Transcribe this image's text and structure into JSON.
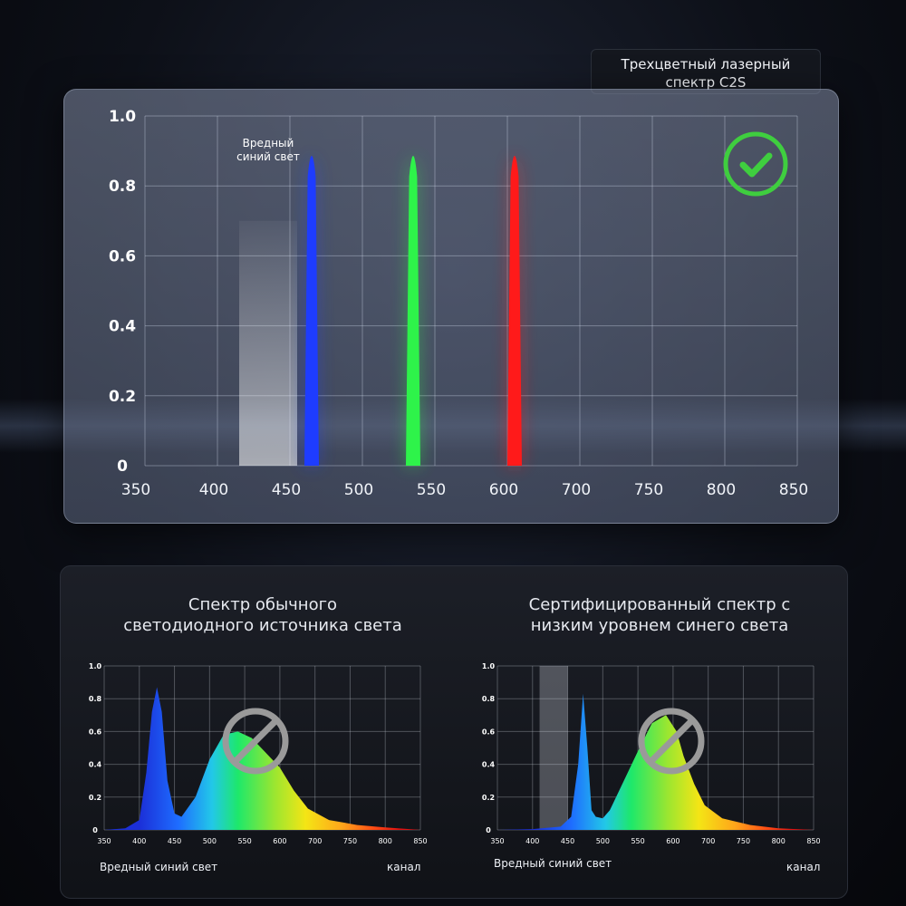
{
  "caption": {
    "line1": "Трехцветный лазерный",
    "line2": "спектр C2S"
  },
  "colors": {
    "blue": "#1e3cff",
    "green": "#2ef34a",
    "red": "#ff1a1a",
    "check": "#3fce3f",
    "prohibit": "#9a9a9a"
  },
  "chart_data": [
    {
      "type": "line",
      "title": "Трехцветный лазерный спектр C2S",
      "x_ticks": [
        350,
        400,
        450,
        500,
        550,
        600,
        700,
        750,
        800,
        850
      ],
      "y_ticks": [
        0,
        0.2,
        0.4,
        0.6,
        0.8,
        1.0
      ],
      "y_tick_labels": [
        "0",
        "0.2",
        "0.4",
        "0.6",
        "0.8",
        "1.0"
      ],
      "highlight_band": {
        "from": 415,
        "to": 455,
        "label_line1": "Вредный",
        "label_line2": "синий свет"
      },
      "series": [
        {
          "peak_x": 465,
          "value": 0.93,
          "color": "blue"
        },
        {
          "peak_x": 535,
          "value": 0.93,
          "color": "green"
        },
        {
          "peak_x": 610,
          "value": 0.93,
          "color": "red"
        }
      ],
      "grid": true,
      "badge": "check-icon"
    },
    {
      "type": "area",
      "title": "Спектр обычного\nсветодиодного источника света",
      "x_ticks": [
        350,
        400,
        450,
        500,
        550,
        600,
        700,
        750,
        800,
        850
      ],
      "y_ticks": [
        0,
        0.2,
        0.4,
        0.6,
        0.8,
        1.0
      ],
      "y_tick_labels": [
        "0",
        "0.2",
        "0.4",
        "0.6",
        "0.8",
        "1.0"
      ],
      "x": [
        350,
        380,
        400,
        410,
        418,
        425,
        432,
        440,
        450,
        460,
        480,
        500,
        520,
        540,
        560,
        580,
        600,
        640,
        680,
        720,
        760,
        800,
        850
      ],
      "y": [
        0.0,
        0.01,
        0.06,
        0.35,
        0.72,
        0.87,
        0.72,
        0.3,
        0.1,
        0.08,
        0.2,
        0.43,
        0.58,
        0.6,
        0.56,
        0.47,
        0.38,
        0.24,
        0.13,
        0.06,
        0.03,
        0.015,
        0.0
      ],
      "footer_left": "Вредный синий свет",
      "footer_right": "канал",
      "badge": "prohibit-icon"
    },
    {
      "type": "area",
      "title": "Сертифицированный спектр с\nнизким уровнем синего света",
      "x_ticks": [
        350,
        400,
        450,
        500,
        550,
        600,
        700,
        750,
        800,
        850
      ],
      "y_ticks": [
        0,
        0.2,
        0.4,
        0.6,
        0.8,
        1.0
      ],
      "y_tick_labels": [
        "0",
        "0.2",
        "0.4",
        "0.6",
        "0.8",
        "1.0"
      ],
      "highlight_band": {
        "from": 410,
        "to": 450
      },
      "x": [
        350,
        400,
        440,
        455,
        465,
        472,
        478,
        484,
        490,
        500,
        510,
        530,
        550,
        570,
        590,
        610,
        630,
        660,
        690,
        720,
        760,
        800,
        850
      ],
      "y": [
        0.0,
        0.005,
        0.02,
        0.08,
        0.4,
        0.83,
        0.5,
        0.12,
        0.08,
        0.07,
        0.12,
        0.3,
        0.48,
        0.65,
        0.7,
        0.6,
        0.45,
        0.28,
        0.15,
        0.07,
        0.03,
        0.01,
        0.0
      ],
      "footer_left": "Вредный синий свет",
      "footer_right": "канал",
      "badge": "prohibit-icon"
    }
  ]
}
